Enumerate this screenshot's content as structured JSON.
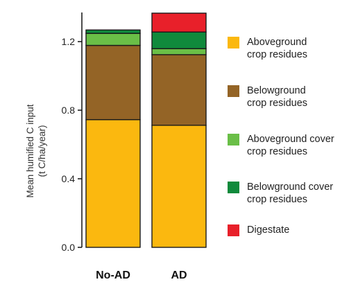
{
  "chart_data": {
    "type": "bar",
    "stacked": true,
    "title": "",
    "xlabel": "",
    "ylabel": "Mean humified C input\n(t C/ha/year)",
    "ylim": [
      0,
      1.37
    ],
    "yticks": [
      "0.0",
      "0.4",
      "0.8",
      "1.2"
    ],
    "grid": false,
    "legend_position": "right",
    "categories": [
      "No-AD",
      "AD"
    ],
    "series": [
      {
        "name": "Aboveground\ncrop residues",
        "color": "#FBB80F",
        "values": [
          0.745,
          0.712
        ]
      },
      {
        "name": "Belowground\ncrop residues",
        "color": "#946426",
        "values": [
          0.433,
          0.412
        ]
      },
      {
        "name": "Aboveground cover\ncrop residues",
        "color": "#6ABF47",
        "values": [
          0.07,
          0.035
        ]
      },
      {
        "name": "Belowground cover\ncrop residues",
        "color": "#108A3C",
        "values": [
          0.02,
          0.097
        ]
      },
      {
        "name": "Digestate",
        "color": "#E8202A",
        "values": [
          0.0,
          0.11
        ]
      }
    ]
  }
}
